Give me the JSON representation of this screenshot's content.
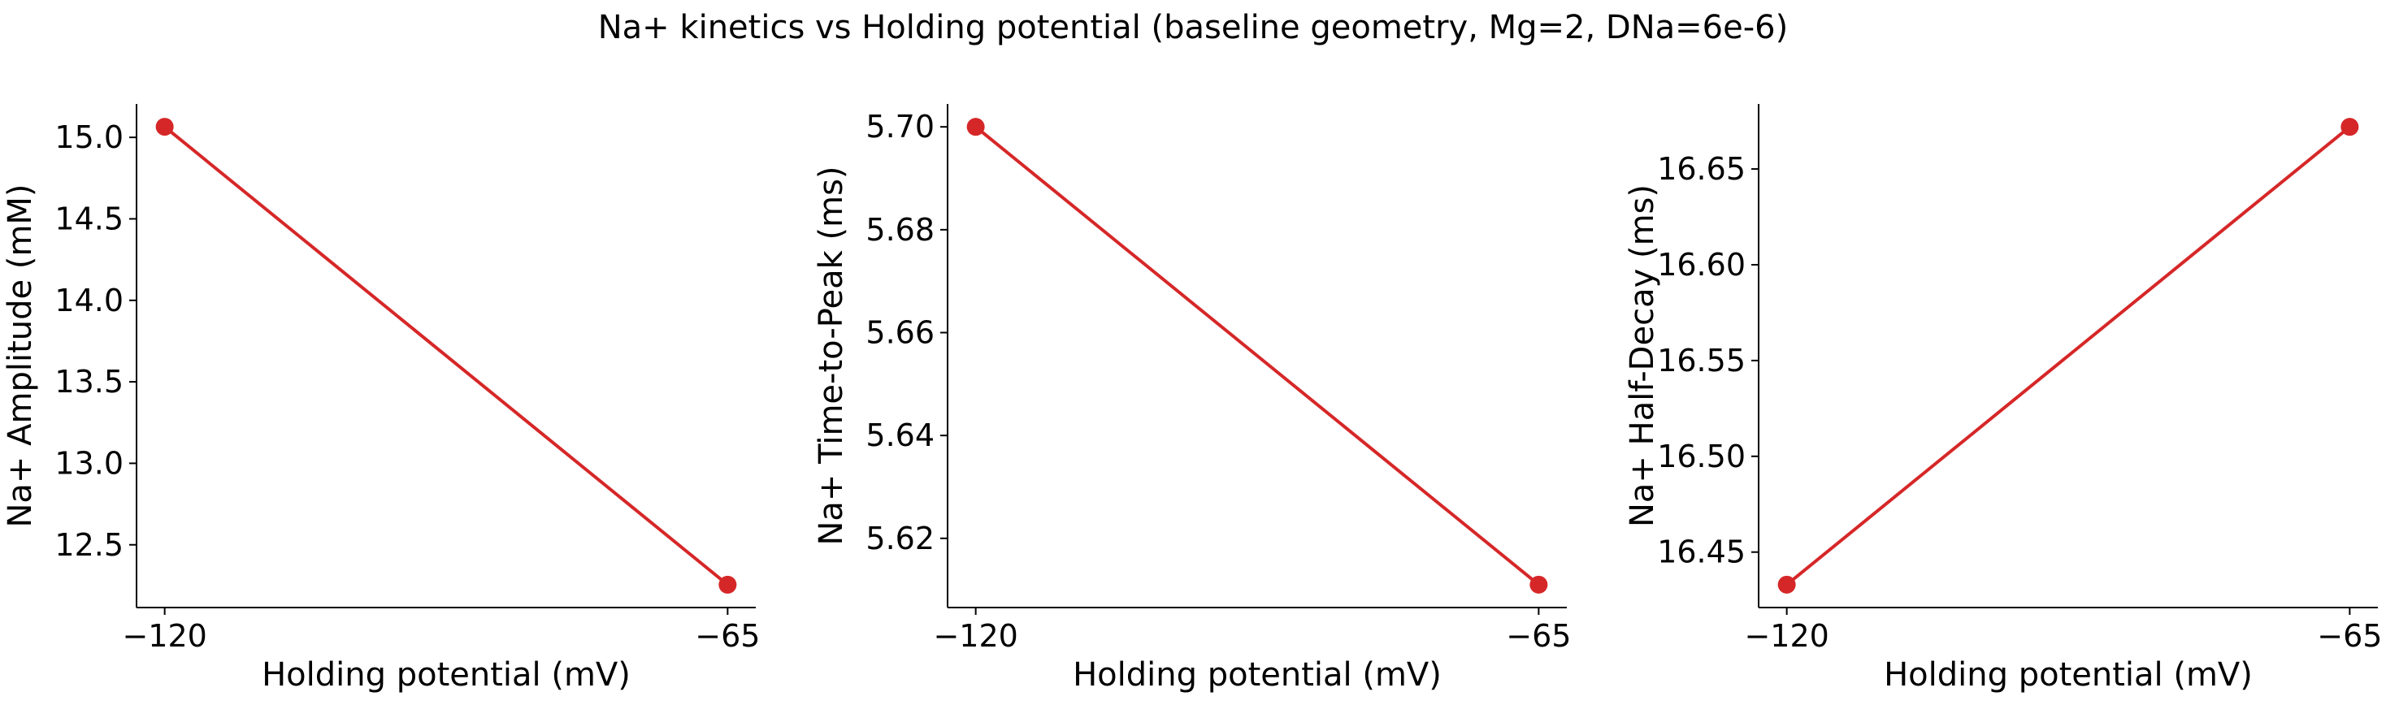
{
  "figure": {
    "suptitle": "Na+ kinetics vs Holding potential (baseline geometry, Mg=2, DNa=6e-6)"
  },
  "chart_data": [
    {
      "type": "line",
      "title": "",
      "xlabel": "Holding potential (mV)",
      "ylabel": "Na+ Amplitude (mM)",
      "x": [
        -120,
        -65
      ],
      "xticks": [
        -120,
        -65
      ],
      "xtick_labels": [
        "−120",
        "−65"
      ],
      "xlim": [
        -122.75,
        -62.25
      ],
      "series": [
        {
          "values": [
            15.065,
            12.255
          ],
          "color": "#d62728"
        }
      ],
      "ylim": [
        12.115,
        15.205
      ],
      "yticks": [
        12.5,
        13.0,
        13.5,
        14.0,
        14.5,
        15.0
      ],
      "ytick_labels": [
        "12.5",
        "13.0",
        "13.5",
        "14.0",
        "14.5",
        "15.0"
      ],
      "grid": false,
      "legend": "none"
    },
    {
      "type": "line",
      "title": "",
      "xlabel": "Holding potential (mV)",
      "ylabel": "Na+ Time-to-Peak (ms)",
      "x": [
        -120,
        -65
      ],
      "xticks": [
        -120,
        -65
      ],
      "xtick_labels": [
        "−120",
        "−65"
      ],
      "xlim": [
        -122.75,
        -62.25
      ],
      "series": [
        {
          "values": [
            5.7,
            5.611
          ],
          "color": "#d62728"
        }
      ],
      "ylim": [
        5.60655,
        5.70445
      ],
      "yticks": [
        5.62,
        5.64,
        5.66,
        5.68,
        5.7
      ],
      "ytick_labels": [
        "5.62",
        "5.64",
        "5.66",
        "5.68",
        "5.70"
      ],
      "grid": false,
      "legend": "none"
    },
    {
      "type": "line",
      "title": "",
      "xlabel": "Holding potential (mV)",
      "ylabel": "Na+ Half-Decay (ms)",
      "x": [
        -120,
        -65
      ],
      "xticks": [
        -120,
        -65
      ],
      "xtick_labels": [
        "−120",
        "−65"
      ],
      "xlim": [
        -122.75,
        -62.25
      ],
      "series": [
        {
          "values": [
            16.433,
            16.672
          ],
          "color": "#d62728"
        }
      ],
      "ylim": [
        16.42105,
        16.68395
      ],
      "yticks": [
        16.45,
        16.5,
        16.55,
        16.6,
        16.65
      ],
      "ytick_labels": [
        "16.45",
        "16.50",
        "16.55",
        "16.60",
        "16.65"
      ],
      "grid": false,
      "legend": "none"
    }
  ]
}
